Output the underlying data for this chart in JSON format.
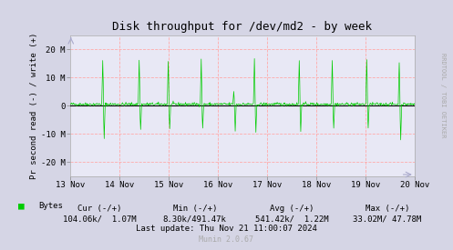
{
  "title": "Disk throughput for /dev/md2 - by week",
  "ylabel": "Pr second read (-) / write (+)",
  "xlabel_ticks": [
    "13 Nov",
    "14 Nov",
    "15 Nov",
    "16 Nov",
    "17 Nov",
    "18 Nov",
    "19 Nov",
    "20 Nov"
  ],
  "ylim": [
    -25000000,
    25000000
  ],
  "yticks": [
    -20000000,
    -10000000,
    0,
    10000000,
    20000000
  ],
  "ytick_labels": [
    "-20 M",
    "-10 M",
    "0",
    "10 M",
    "20 M"
  ],
  "bg_color": "#d5d5e5",
  "plot_bg_color": "#e8e8f5",
  "grid_color_h": "#ff9999",
  "grid_color_v": "#ff9999",
  "zero_line_color": "#000000",
  "line_color": "#00cc00",
  "legend_label": "Bytes",
  "legend_color": "#00cc00",
  "footer_cur_label": "Cur (-/+)",
  "footer_cur_val": "104.06k/  1.07M",
  "footer_min_label": "Min (-/+)",
  "footer_min_val": "8.30k/491.47k",
  "footer_avg_label": "Avg (-/+)",
  "footer_avg_val": "541.42k/  1.22M",
  "footer_max_label": "Max (-/+)",
  "footer_max_val": "33.02M/ 47.78M",
  "footer_last": "Last update: Thu Nov 21 11:00:07 2024",
  "footer_munin": "Munin 2.0.67",
  "rrdtool_text": "RRDTOOL / TOBI OETIKER",
  "num_points": 700,
  "spike_positions": [
    0.095,
    0.2,
    0.285,
    0.38,
    0.475,
    0.535,
    0.665,
    0.76,
    0.86,
    0.955
  ],
  "spike_heights_pos": [
    15500000,
    15500000,
    15500000,
    15500000,
    4500000,
    15500000,
    15500000,
    15500000,
    15500000,
    15500000
  ],
  "spike_heights_neg": [
    -12000000,
    -9000000,
    -9000000,
    -8500000,
    -9500000,
    -10000000,
    -9500000,
    -8500000,
    -9000000,
    -12000000
  ],
  "noise_amplitude": 300000,
  "baseline_positive": 500000,
  "arrow_color": "#aaaacc"
}
